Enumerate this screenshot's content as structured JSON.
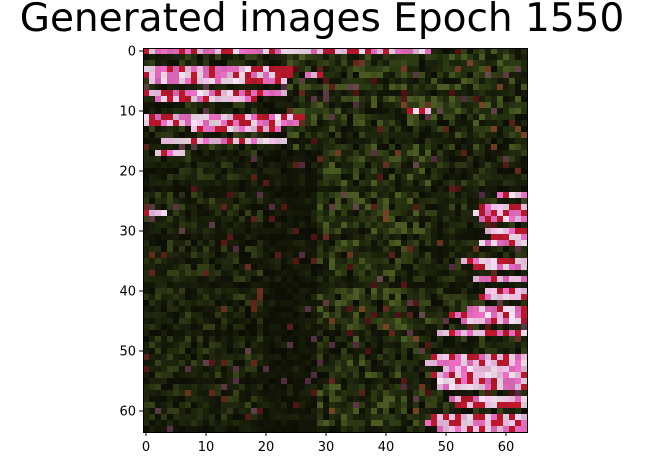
{
  "chart_data": {
    "type": "heatmap",
    "title": "Generated images Epoch 1550",
    "xlabel": "",
    "ylabel": "",
    "image_shape": [
      64,
      64
    ],
    "xlim": [
      -0.5,
      63.5
    ],
    "ylim": [
      63.5,
      -0.5
    ],
    "x_ticks": [
      0,
      10,
      20,
      30,
      40,
      50,
      60
    ],
    "y_ticks": [
      0,
      10,
      20,
      30,
      40,
      50,
      60
    ],
    "x_tick_labels": [
      "0",
      "10",
      "20",
      "30",
      "40",
      "50",
      "60"
    ],
    "y_tick_labels": [
      "0",
      "10",
      "20",
      "30",
      "40",
      "50",
      "60"
    ],
    "grid": false,
    "palette": {
      "background": "#0c0d04",
      "moss": "#2a3a12",
      "moss_light": "#4a5a22",
      "red": "#c0182e",
      "pink": "#f070c8",
      "pink_light": "#f8c8ee",
      "white_pink": "#fbe4f6"
    }
  }
}
